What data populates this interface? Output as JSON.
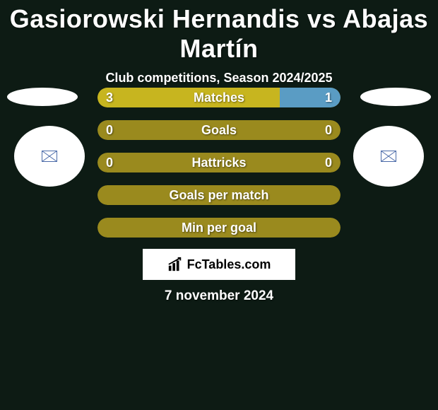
{
  "background_color": "#0d1b14",
  "title": "Gasiorowski Hernandis vs Abajas Martín",
  "title_color": "#ffffff",
  "title_fontsize": 36,
  "subtitle": "Club competitions, Season 2024/2025",
  "subtitle_color": "#ffffff",
  "subtitle_fontsize": 18,
  "bar_colors": {
    "base": "#9a8a1e",
    "highlight_left": "#c7b51f",
    "highlight_right": "#5a9cc4"
  },
  "bars": [
    {
      "label": "Matches",
      "left": "3",
      "right": "1",
      "left_pct": 75,
      "right_pct": 25,
      "show_values": true
    },
    {
      "label": "Goals",
      "left": "0",
      "right": "0",
      "left_pct": 0,
      "right_pct": 0,
      "show_values": true
    },
    {
      "label": "Hattricks",
      "left": "0",
      "right": "0",
      "left_pct": 0,
      "right_pct": 0,
      "show_values": true
    },
    {
      "label": "Goals per match",
      "left": "",
      "right": "",
      "left_pct": 0,
      "right_pct": 0,
      "show_values": false
    },
    {
      "label": "Min per goal",
      "left": "",
      "right": "",
      "left_pct": 0,
      "right_pct": 0,
      "show_values": false
    }
  ],
  "flag_ellipse_color": "#ffffff",
  "badge_circle_color": "#ffffff",
  "badge_inner_border": "#4a6aa8",
  "logo": {
    "text": "FcTables.com",
    "box_bg": "#ffffff",
    "text_color": "#000000",
    "icon_color": "#000000"
  },
  "date": "7 november 2024",
  "date_color": "#ffffff"
}
